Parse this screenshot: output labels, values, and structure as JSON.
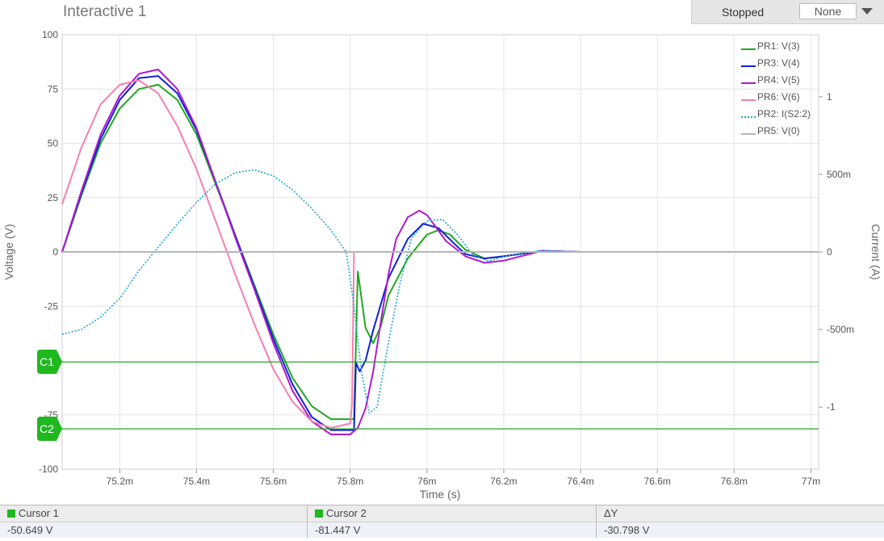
{
  "window": {
    "title": "Interactive 1"
  },
  "toolbar": {
    "status": "Stopped",
    "select_value": "None"
  },
  "chart_data": {
    "type": "line",
    "xlabel": "Time (s)",
    "ylabel_left": "Voltage (V)",
    "ylabel_right": "Current (A)",
    "xlim": [
      75.05,
      77.02
    ],
    "ylim_left": [
      -100,
      100
    ],
    "ylim_right": [
      -1.4,
      1.4
    ],
    "x_ticks": [
      {
        "v": 75.2,
        "label": "75.2m"
      },
      {
        "v": 75.4,
        "label": "75.4m"
      },
      {
        "v": 75.6,
        "label": "75.6m"
      },
      {
        "v": 75.8,
        "label": "75.8m"
      },
      {
        "v": 76.0,
        "label": "76m"
      },
      {
        "v": 76.2,
        "label": "76.2m"
      },
      {
        "v": 76.4,
        "label": "76.4m"
      },
      {
        "v": 76.6,
        "label": "76.6m"
      },
      {
        "v": 76.8,
        "label": "76.8m"
      },
      {
        "v": 77.0,
        "label": "77m"
      }
    ],
    "y_ticks_left": [
      {
        "v": 100,
        "label": "100"
      },
      {
        "v": 75,
        "label": "75"
      },
      {
        "v": 50,
        "label": "50"
      },
      {
        "v": 25,
        "label": "25"
      },
      {
        "v": 0,
        "label": "0"
      },
      {
        "v": -25,
        "label": "-25"
      },
      {
        "v": -75,
        "label": "-75"
      },
      {
        "v": -100,
        "label": "-100"
      }
    ],
    "y_ticks_right": [
      {
        "v": 1,
        "label": "1"
      },
      {
        "v": 0.5,
        "label": "500m"
      },
      {
        "v": 0,
        "label": "0"
      },
      {
        "v": -0.5,
        "label": "-500m"
      },
      {
        "v": -1,
        "label": "-1"
      }
    ],
    "grid": true,
    "legend_position": "top-right",
    "cursors": [
      {
        "label": "C1",
        "value": -50.649
      },
      {
        "label": "C2",
        "value": -81.447
      }
    ],
    "series": [
      {
        "name": "PR1: V(3)",
        "color": "#1fa81f",
        "axis": "left",
        "dashed": false,
        "x": [
          75.05,
          75.1,
          75.15,
          75.2,
          75.25,
          75.3,
          75.35,
          75.4,
          75.45,
          75.5,
          75.55,
          75.6,
          75.65,
          75.7,
          75.75,
          75.8,
          75.81,
          75.82,
          75.84,
          75.86,
          75.88,
          75.9,
          75.95,
          76.0,
          76.03,
          76.06,
          76.1,
          76.15,
          76.2,
          76.3,
          76.4,
          77.0
        ],
        "y": [
          0,
          26,
          50,
          66,
          75,
          77,
          70,
          54,
          31,
          8,
          -15,
          -38,
          -58,
          -71,
          -77,
          -77,
          -77,
          -9,
          -35,
          -42,
          -34,
          -20,
          -3,
          8,
          10,
          8,
          1,
          -3,
          -2,
          0.5,
          0,
          0
        ]
      },
      {
        "name": "PR3: V(4)",
        "color": "#1020d8",
        "axis": "left",
        "dashed": false,
        "x": [
          75.05,
          75.1,
          75.15,
          75.2,
          75.25,
          75.3,
          75.35,
          75.4,
          75.45,
          75.5,
          75.55,
          75.6,
          75.65,
          75.7,
          75.75,
          75.8,
          75.81,
          75.815,
          75.825,
          75.84,
          75.86,
          75.9,
          75.95,
          75.99,
          76.03,
          76.07,
          76.1,
          76.15,
          76.2,
          76.3,
          76.4,
          77.0
        ],
        "y": [
          0,
          27,
          52,
          70,
          80,
          81,
          73,
          56,
          32,
          8,
          -16,
          -40,
          -61,
          -76,
          -82,
          -82,
          -82,
          -51,
          -55,
          -50,
          -36,
          -12,
          6,
          13,
          11,
          4,
          -1,
          -3,
          -2,
          0.5,
          0,
          0
        ]
      },
      {
        "name": "PR4: V(5)",
        "color": "#b01ad0",
        "axis": "left",
        "dashed": false,
        "x": [
          75.05,
          75.1,
          75.15,
          75.2,
          75.25,
          75.3,
          75.35,
          75.4,
          75.45,
          75.5,
          75.55,
          75.6,
          75.65,
          75.7,
          75.75,
          75.8,
          75.82,
          75.84,
          75.86,
          75.88,
          75.9,
          75.92,
          75.95,
          75.98,
          76.0,
          76.05,
          76.1,
          76.15,
          76.2,
          76.3,
          76.4,
          77.0
        ],
        "y": [
          0,
          28,
          54,
          72,
          82,
          84,
          75,
          57,
          32,
          7,
          -17,
          -42,
          -64,
          -78,
          -84,
          -84,
          -81,
          -72,
          -55,
          -32,
          -10,
          6,
          16,
          19,
          17,
          5,
          -2,
          -5,
          -4,
          0.5,
          0,
          0
        ]
      },
      {
        "name": "PR6: V(6)",
        "color": "#f57fb0",
        "axis": "left",
        "dashed": false,
        "x": [
          75.05,
          75.1,
          75.15,
          75.2,
          75.25,
          75.3,
          75.35,
          75.4,
          75.45,
          75.5,
          75.55,
          75.6,
          75.65,
          75.7,
          75.75,
          75.8,
          75.805,
          75.81,
          76.0,
          77.0
        ],
        "y": [
          22,
          48,
          68,
          77,
          79,
          73,
          58,
          38,
          14,
          -10,
          -33,
          -54,
          -69,
          -78,
          -81,
          -79,
          -70,
          0,
          0,
          0
        ]
      },
      {
        "name": "PR2: I(S2:2)",
        "color": "#1aa8d0",
        "axis": "right",
        "dashed": true,
        "x": [
          75.05,
          75.1,
          75.15,
          75.2,
          75.25,
          75.3,
          75.35,
          75.4,
          75.45,
          75.5,
          75.55,
          75.6,
          75.65,
          75.7,
          75.75,
          75.79,
          75.81,
          75.83,
          75.85,
          75.87,
          75.9,
          75.93,
          75.96,
          76.0,
          76.04,
          76.08,
          76.12,
          76.16,
          76.2,
          76.3,
          76.4,
          77.0
        ],
        "y": [
          -0.53,
          -0.5,
          -0.42,
          -0.3,
          -0.12,
          0.03,
          0.18,
          0.32,
          0.44,
          0.51,
          0.53,
          0.49,
          0.4,
          0.28,
          0.14,
          0,
          -0.35,
          -0.78,
          -1.04,
          -1.0,
          -0.58,
          -0.2,
          0.09,
          0.2,
          0.21,
          0.11,
          -0.02,
          -0.06,
          -0.03,
          0.01,
          0,
          0
        ]
      },
      {
        "name": "PR5: V(0)",
        "color": "#b5b5b5",
        "axis": "left",
        "dashed": false,
        "x": [
          75.05,
          77.02
        ],
        "y": [
          0,
          0
        ]
      }
    ]
  },
  "cursor_table": {
    "headers": [
      "Cursor 1",
      "Cursor 2",
      "ΔY"
    ],
    "values": [
      "-50.649 V",
      "-81.447 V",
      "-30.798 V"
    ]
  }
}
